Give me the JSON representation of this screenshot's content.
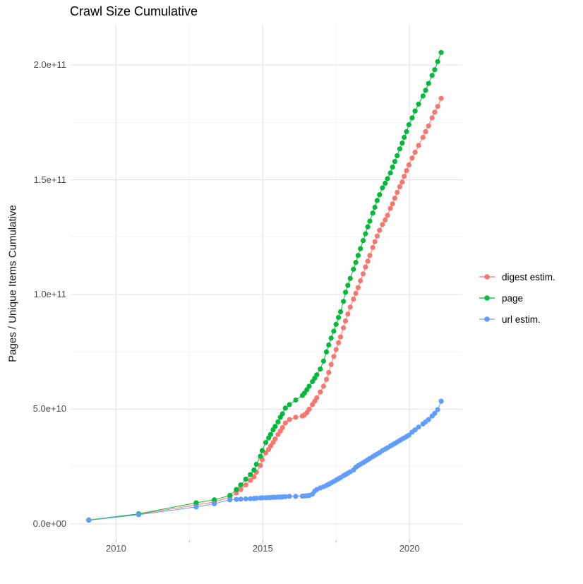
{
  "chart_data": {
    "type": "line",
    "title": "Crawl Size Cumulative",
    "xlabel": "",
    "ylabel": "Pages / Unique Items Cumulative",
    "legend_position": "right",
    "grid": "on",
    "background": "#ffffff",
    "major_grid_color": "#e4e4e4",
    "minor_grid_color": "#f0f0f0",
    "tick_text_color": "#4d4d4d",
    "xlim": [
      2008.45,
      2021.8
    ],
    "ylim_e9": [
      -7.1,
      217.6
    ],
    "x_major_ticks": [
      2010,
      2015,
      2020
    ],
    "x_major_tick_labels": [
      "2010",
      "2015",
      "2020"
    ],
    "x_minor_ticks": [
      2012.5,
      2017.5
    ],
    "y_major_ticks_e9": [
      0,
      50,
      100,
      150,
      200
    ],
    "y_major_tick_labels": [
      "0.0e+00",
      "5.0e+10",
      "1.0e+11",
      "1.5e+11",
      "2.0e+11"
    ],
    "y_minor_ticks_e9": [
      25,
      75,
      125,
      175
    ],
    "x": [
      2009.07,
      2010.77,
      2012.73,
      2013.35,
      2013.88,
      2014.1,
      2014.25,
      2014.42,
      2014.58,
      2014.7,
      2014.78,
      2014.92,
      2014.98,
      2015.1,
      2015.2,
      2015.27,
      2015.35,
      2015.42,
      2015.52,
      2015.6,
      2015.67,
      2015.77,
      2015.91,
      2016.12,
      2016.35,
      2016.42,
      2016.5,
      2016.58,
      2016.69,
      2016.77,
      2016.84,
      2016.96,
      2017.07,
      2017.17,
      2017.25,
      2017.33,
      2017.42,
      2017.5,
      2017.58,
      2017.65,
      2017.75,
      2017.82,
      2017.9,
      2017.98,
      2018.09,
      2018.17,
      2018.25,
      2018.33,
      2018.42,
      2018.5,
      2018.58,
      2018.65,
      2018.75,
      2018.82,
      2018.9,
      2018.98,
      2019.08,
      2019.17,
      2019.25,
      2019.35,
      2019.42,
      2019.5,
      2019.58,
      2019.67,
      2019.75,
      2019.82,
      2019.9,
      2019.98,
      2020.09,
      2020.19,
      2020.31,
      2020.46,
      2020.55,
      2020.65,
      2020.77,
      2020.86,
      2020.96,
      2021.08
    ],
    "series": [
      {
        "name": "digest estim.",
        "color": "#F8766D",
        "values_e9": [
          1.7,
          4.2,
          8.3,
          9.6,
          11.7,
          13.5,
          15.0,
          17.0,
          19.0,
          20.5,
          22.5,
          25.5,
          28.0,
          31.0,
          32.5,
          34.0,
          35.5,
          37.0,
          39.0,
          40.5,
          42.0,
          44.0,
          45.5,
          46.5,
          47.0,
          47.5,
          48.5,
          50.0,
          52.0,
          53.5,
          55.0,
          57.5,
          60.0,
          63.0,
          66.0,
          69.5,
          73.0,
          76.0,
          79.0,
          81.5,
          85.5,
          88.5,
          91.5,
          94.5,
          98.0,
          100.5,
          103.0,
          106.0,
          109.0,
          112.0,
          114.5,
          117.0,
          120.5,
          123.0,
          125.5,
          128.0,
          130.5,
          132.5,
          134.5,
          137.5,
          139.5,
          142.0,
          144.5,
          147.0,
          149.0,
          151.5,
          154.0,
          156.5,
          159.5,
          162.0,
          165.0,
          168.5,
          171.0,
          173.5,
          177.0,
          179.5,
          182.0,
          185.5
        ]
      },
      {
        "name": "page",
        "color": "#00BA38",
        "values_e9": [
          1.7,
          4.4,
          9.2,
          10.5,
          12.4,
          15.0,
          17.0,
          19.5,
          21.5,
          23.5,
          26.0,
          29.5,
          32.0,
          35.5,
          37.5,
          39.0,
          41.0,
          42.5,
          44.5,
          46.5,
          48.0,
          50.5,
          52.0,
          54.0,
          56.0,
          57.0,
          58.5,
          60.0,
          62.0,
          63.5,
          65.0,
          67.5,
          71.0,
          75.0,
          78.0,
          81.0,
          84.0,
          87.0,
          90.0,
          92.5,
          97.0,
          101.0,
          104.0,
          107.0,
          111.0,
          114.0,
          117.0,
          120.0,
          123.5,
          126.5,
          129.5,
          132.0,
          135.5,
          138.0,
          141.0,
          143.5,
          146.5,
          148.5,
          150.5,
          153.0,
          155.5,
          158.0,
          160.5,
          163.5,
          166.0,
          168.5,
          171.0,
          174.0,
          177.0,
          180.0,
          183.0,
          186.5,
          189.0,
          192.0,
          195.5,
          198.0,
          201.5,
          205.5
        ]
      },
      {
        "name": "url estim.",
        "color": "#619CFF",
        "values_e9": [
          1.6,
          4.0,
          7.4,
          8.8,
          10.5,
          10.7,
          10.8,
          10.9,
          11.0,
          11.1,
          11.2,
          11.3,
          11.4,
          11.4,
          11.5,
          11.5,
          11.6,
          11.6,
          11.7,
          11.7,
          11.8,
          11.9,
          12.0,
          12.0,
          12.1,
          12.2,
          12.3,
          12.4,
          13.0,
          14.3,
          15.0,
          15.7,
          16.2,
          16.8,
          17.3,
          17.9,
          18.5,
          19.1,
          19.7,
          20.2,
          21.0,
          21.5,
          22.1,
          22.7,
          23.5,
          24.7,
          25.4,
          26.0,
          26.7,
          27.3,
          28.0,
          28.5,
          29.3,
          29.9,
          30.5,
          31.1,
          32.0,
          32.6,
          33.2,
          34.0,
          34.5,
          35.1,
          35.7,
          36.4,
          37.0,
          37.5,
          38.1,
          38.7,
          40.0,
          41.0,
          42.2,
          43.6,
          44.5,
          45.5,
          47.0,
          48.2,
          49.8,
          53.5
        ]
      }
    ]
  }
}
